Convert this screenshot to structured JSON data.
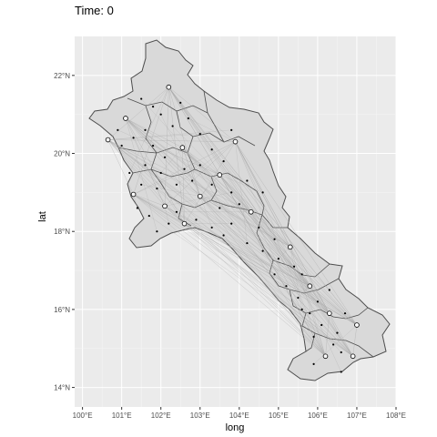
{
  "chart_data": {
    "type": "map",
    "title": "Time: 0",
    "xlabel": "long",
    "ylabel": "lat",
    "xlim": [
      99.8,
      108.0
    ],
    "ylim": [
      13.5,
      23.0
    ],
    "x_ticks": [
      {
        "value": 100,
        "label": "100°E"
      },
      {
        "value": 101,
        "label": "101°E"
      },
      {
        "value": 102,
        "label": "102°E"
      },
      {
        "value": 103,
        "label": "103°E"
      },
      {
        "value": 104,
        "label": "104°E"
      },
      {
        "value": 105,
        "label": "105°E"
      },
      {
        "value": 106,
        "label": "106°E"
      },
      {
        "value": 107,
        "label": "107°E"
      },
      {
        "value": 108,
        "label": "108°E"
      }
    ],
    "y_ticks": [
      {
        "value": 14,
        "label": "14°N"
      },
      {
        "value": 16,
        "label": "16°N"
      },
      {
        "value": 18,
        "label": "18°N"
      },
      {
        "value": 20,
        "label": "20°N"
      },
      {
        "value": 22,
        "label": "22°N"
      }
    ],
    "grid": true,
    "colors": {
      "panel": "#ebebeb",
      "grid_major": "#ffffff",
      "region_fill": "#d9d9d9",
      "region_border": "#4d4d4d",
      "flow_line": "#a6a6a6",
      "point_fill": "#ffffff",
      "point_stroke": "#000000"
    },
    "hubs": [
      {
        "x": 102.2,
        "y": 21.7
      },
      {
        "x": 101.1,
        "y": 20.9
      },
      {
        "x": 100.65,
        "y": 20.35
      },
      {
        "x": 102.55,
        "y": 20.15
      },
      {
        "x": 103.9,
        "y": 20.3
      },
      {
        "x": 103.5,
        "y": 19.45
      },
      {
        "x": 101.3,
        "y": 18.95
      },
      {
        "x": 103.0,
        "y": 18.9
      },
      {
        "x": 102.1,
        "y": 18.65
      },
      {
        "x": 104.3,
        "y": 18.5
      },
      {
        "x": 102.6,
        "y": 18.2
      },
      {
        "x": 105.3,
        "y": 17.6
      },
      {
        "x": 105.8,
        "y": 16.6
      },
      {
        "x": 106.3,
        "y": 15.9
      },
      {
        "x": 107.0,
        "y": 15.6
      },
      {
        "x": 106.2,
        "y": 14.8
      },
      {
        "x": 106.9,
        "y": 14.8
      }
    ],
    "points": [
      {
        "x": 101.8,
        "y": 21.2
      },
      {
        "x": 102.0,
        "y": 21.0
      },
      {
        "x": 102.5,
        "y": 21.3
      },
      {
        "x": 102.7,
        "y": 20.9
      },
      {
        "x": 102.3,
        "y": 20.7
      },
      {
        "x": 101.6,
        "y": 20.6
      },
      {
        "x": 101.3,
        "y": 20.4
      },
      {
        "x": 101.0,
        "y": 20.2
      },
      {
        "x": 101.8,
        "y": 20.2
      },
      {
        "x": 102.1,
        "y": 19.9
      },
      {
        "x": 103.0,
        "y": 20.5
      },
      {
        "x": 103.3,
        "y": 20.1
      },
      {
        "x": 103.6,
        "y": 19.8
      },
      {
        "x": 103.0,
        "y": 19.7
      },
      {
        "x": 102.6,
        "y": 19.6
      },
      {
        "x": 102.0,
        "y": 19.5
      },
      {
        "x": 101.6,
        "y": 19.7
      },
      {
        "x": 101.2,
        "y": 19.5
      },
      {
        "x": 101.5,
        "y": 19.2
      },
      {
        "x": 101.9,
        "y": 19.1
      },
      {
        "x": 102.4,
        "y": 19.2
      },
      {
        "x": 102.8,
        "y": 19.3
      },
      {
        "x": 103.3,
        "y": 19.2
      },
      {
        "x": 103.8,
        "y": 19.0
      },
      {
        "x": 104.2,
        "y": 19.3
      },
      {
        "x": 104.6,
        "y": 19.0
      },
      {
        "x": 104.0,
        "y": 18.7
      },
      {
        "x": 103.5,
        "y": 18.6
      },
      {
        "x": 102.4,
        "y": 18.5
      },
      {
        "x": 101.7,
        "y": 18.4
      },
      {
        "x": 101.4,
        "y": 18.6
      },
      {
        "x": 102.9,
        "y": 18.3
      },
      {
        "x": 103.3,
        "y": 18.1
      },
      {
        "x": 103.8,
        "y": 18.2
      },
      {
        "x": 104.5,
        "y": 18.1
      },
      {
        "x": 104.9,
        "y": 17.8
      },
      {
        "x": 104.6,
        "y": 17.5
      },
      {
        "x": 104.2,
        "y": 17.7
      },
      {
        "x": 105.0,
        "y": 17.3
      },
      {
        "x": 105.4,
        "y": 17.1
      },
      {
        "x": 104.9,
        "y": 16.9
      },
      {
        "x": 105.6,
        "y": 16.9
      },
      {
        "x": 105.2,
        "y": 16.6
      },
      {
        "x": 105.5,
        "y": 16.3
      },
      {
        "x": 106.0,
        "y": 16.2
      },
      {
        "x": 106.3,
        "y": 16.5
      },
      {
        "x": 106.1,
        "y": 15.6
      },
      {
        "x": 105.8,
        "y": 15.9
      },
      {
        "x": 106.5,
        "y": 15.4
      },
      {
        "x": 106.7,
        "y": 15.9
      },
      {
        "x": 106.4,
        "y": 15.1
      },
      {
        "x": 105.9,
        "y": 15.3
      },
      {
        "x": 106.6,
        "y": 14.9
      },
      {
        "x": 105.9,
        "y": 14.6
      },
      {
        "x": 106.6,
        "y": 14.4
      },
      {
        "x": 105.6,
        "y": 16.0
      },
      {
        "x": 101.9,
        "y": 18.0
      },
      {
        "x": 102.2,
        "y": 18.2
      },
      {
        "x": 103.6,
        "y": 17.9
      },
      {
        "x": 100.9,
        "y": 20.6
      },
      {
        "x": 101.5,
        "y": 21.4
      },
      {
        "x": 103.8,
        "y": 20.6
      }
    ]
  }
}
